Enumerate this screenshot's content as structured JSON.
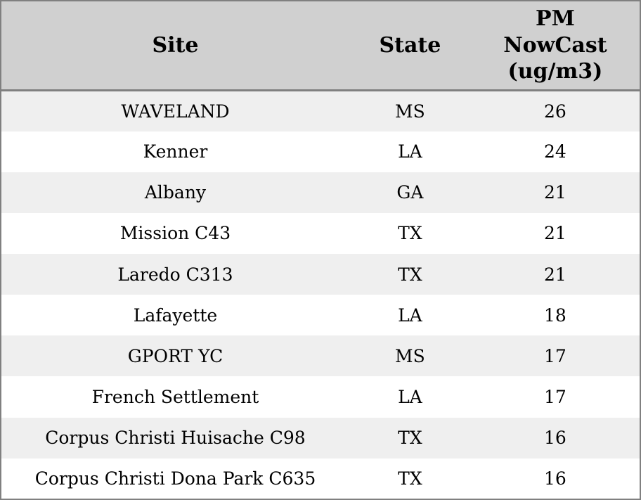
{
  "colors": {
    "border": "#808080",
    "header_background": "#d0d0d0",
    "stripe_row_background": "#efefef",
    "row_background": "#ffffff",
    "text": "#000000"
  },
  "chart_data": {
    "type": "table",
    "columns": [
      "Site",
      "State",
      "PM NowCast (ug/m3)"
    ],
    "rows": [
      [
        "WAVELAND",
        "MS",
        26
      ],
      [
        "Kenner",
        "LA",
        24
      ],
      [
        "Albany",
        "GA",
        21
      ],
      [
        "Mission C43",
        "TX",
        21
      ],
      [
        "Laredo C313",
        "TX",
        21
      ],
      [
        "Lafayette",
        "LA",
        18
      ],
      [
        "GPORT YC",
        "MS",
        17
      ],
      [
        "French Settlement",
        "LA",
        17
      ],
      [
        "Corpus Christi Huisache C98",
        "TX",
        16
      ],
      [
        "Corpus Christi Dona Park C635",
        "TX",
        16
      ]
    ]
  }
}
